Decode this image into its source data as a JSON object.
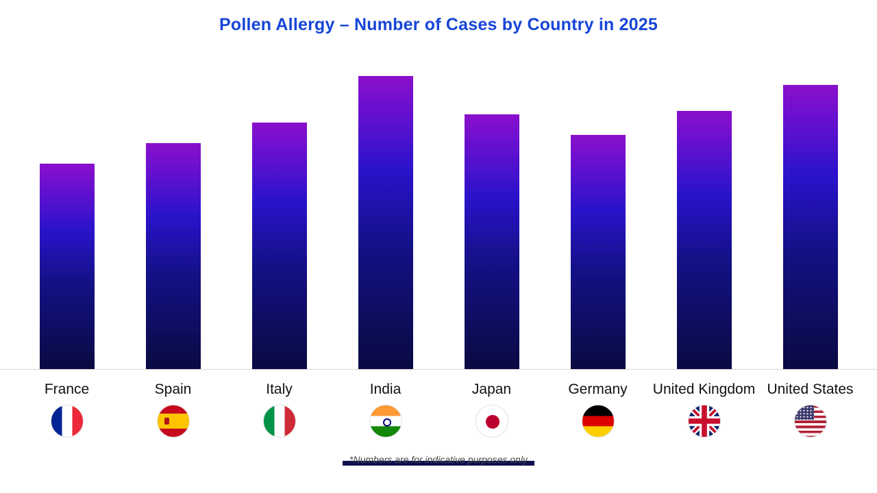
{
  "title": "Pollen Allergy – Number of Cases by Country in 2025",
  "footnote": "*Numbers are for indicative purposes only",
  "chart_data": {
    "type": "bar",
    "title": "Pollen Allergy – Number of Cases by Country in 2025",
    "categories": [
      "France",
      "Spain",
      "Italy",
      "India",
      "Japan",
      "Germany",
      "United Kingdom",
      "United States"
    ],
    "values": [
      70,
      77,
      84,
      100,
      87,
      80,
      88,
      97
    ],
    "values_note": "no numeric axis or data labels shown; values estimated from bar heights relative to tallest bar (India = 100)",
    "xlabel": "",
    "ylabel": "",
    "ylim": [
      0,
      100
    ],
    "grid": false,
    "legend": false,
    "annotations": [
      "*Numbers are for indicative purposes only"
    ],
    "flags": [
      "france",
      "spain",
      "italy",
      "india",
      "japan",
      "germany",
      "united-kingdom",
      "united-states"
    ],
    "bar_gradient_top": "#8a10cb",
    "bar_gradient_mid": "#2a13cb",
    "bar_gradient_bottom": "#0a0a42"
  },
  "colors": {
    "title_blue": "#1645d8",
    "axis_line": "#d9d9d9",
    "label_text": "#111111",
    "footnote_text": "#4a4a4a",
    "footnote_bar": "#10104e"
  }
}
